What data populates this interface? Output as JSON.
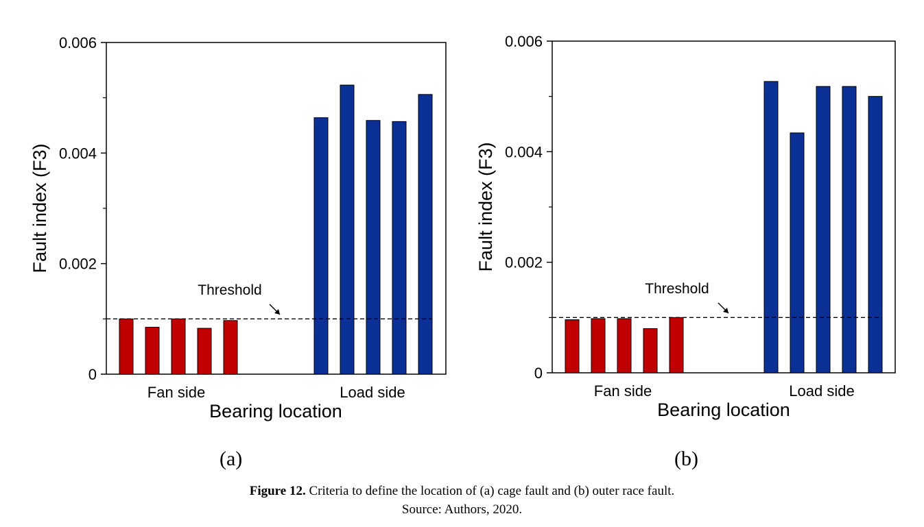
{
  "chart_data": [
    {
      "type": "bar",
      "panel": "(a)",
      "ylabel": "Fault index (F3)",
      "xlabel": "Bearing location",
      "ylim": [
        0,
        0.006
      ],
      "yticks": [
        "0",
        "0.002",
        "0.004",
        "0.006"
      ],
      "groups": [
        "Fan side",
        "Load side"
      ],
      "threshold": {
        "value": 0.001,
        "label": "Threshold"
      },
      "series": [
        {
          "group": "Fan side",
          "color": "#c00000",
          "values": [
            0.001,
            0.00085,
            0.001,
            0.00083,
            0.00097
          ]
        },
        {
          "group": "Load side",
          "color": "#0a2f95",
          "values": [
            0.00464,
            0.00523,
            0.00459,
            0.00457,
            0.00506
          ]
        }
      ]
    },
    {
      "type": "bar",
      "panel": "(b)",
      "ylabel": "Fault index (F3)",
      "xlabel": "Bearing location",
      "ylim": [
        0,
        0.006
      ],
      "yticks": [
        "0",
        "0.002",
        "0.004",
        "0.006"
      ],
      "groups": [
        "Fan side",
        "Load side"
      ],
      "threshold": {
        "value": 0.001,
        "label": "Threshold"
      },
      "series": [
        {
          "group": "Fan side",
          "color": "#c00000",
          "values": [
            0.00096,
            0.00098,
            0.00098,
            0.0008,
            0.001
          ]
        },
        {
          "group": "Load side",
          "color": "#0a2f95",
          "values": [
            0.00527,
            0.00434,
            0.00518,
            0.00518,
            0.005
          ]
        }
      ]
    }
  ],
  "caption": {
    "bold": "Figure 12.",
    "text": " Criteria to define the location of (a) cage fault and (b) outer race fault.",
    "source": "Source: Authors, 2020."
  }
}
